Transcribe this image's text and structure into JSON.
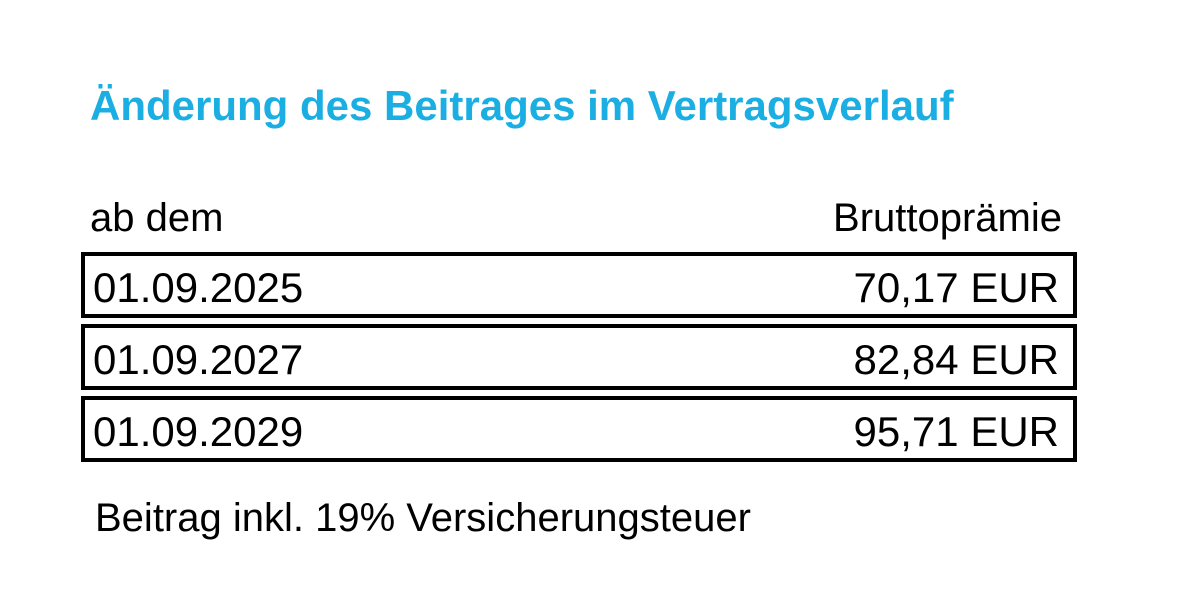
{
  "title": "Änderung des Beitrages im Vertragsverlauf",
  "title_color": "#1aaee2",
  "table": {
    "headers": {
      "date": "ab dem",
      "premium": "Bruttoprämie"
    },
    "rows": [
      {
        "date": "01.09.2025",
        "premium": "70,17 EUR"
      },
      {
        "date": "01.09.2027",
        "premium": "82,84 EUR"
      },
      {
        "date": "01.09.2029",
        "premium": "95,71 EUR"
      }
    ]
  },
  "footnote": "Beitrag inkl. 19% Versicherungsteuer"
}
